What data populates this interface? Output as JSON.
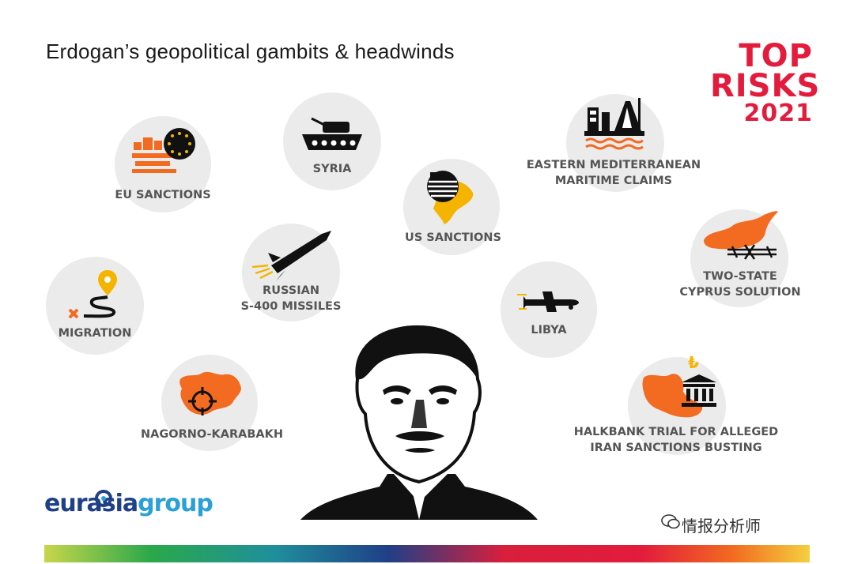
{
  "title": "Erdogan’s geopolitical gambits & headwinds",
  "badge": {
    "line1": "TOP",
    "line2": "RISKS",
    "line3": "2021"
  },
  "items": [
    {
      "label1": "EU SANCTIONS",
      "label2": ""
    },
    {
      "label1": "SYRIA",
      "label2": ""
    },
    {
      "label1": "EASTERN MEDITERRANEAN",
      "label2": "MARITIME CLAIMS"
    },
    {
      "label1": "US SANCTIONS",
      "label2": ""
    },
    {
      "label1": "RUSSIAN",
      "label2": "S-400 MISSILES"
    },
    {
      "label1": "TWO-STATE",
      "label2": "CYPRUS SOLUTION"
    },
    {
      "label1": "MIGRATION",
      "label2": ""
    },
    {
      "label1": "LIBYA",
      "label2": ""
    },
    {
      "label1": "NAGORNO-KARABAKH",
      "label2": ""
    },
    {
      "label1": "HALKBANK TRIAL FOR ALLEGED",
      "label2": "IRAN SANCTIONS BUSTING"
    }
  ],
  "logo": {
    "part1": "eurasia",
    "part2": "group"
  },
  "watermark": "情报分析师",
  "colors": {
    "orange": "#f26b21",
    "yellow": "#f4b400",
    "red": "#e31b3c",
    "navy": "#1f3f87",
    "blue": "#2aa0d8",
    "circle": "#ebebeb"
  }
}
